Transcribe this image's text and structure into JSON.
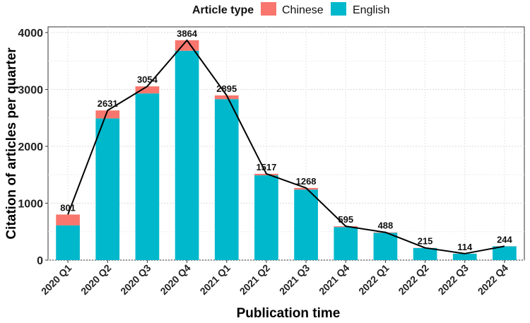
{
  "chart_data": {
    "type": "bar",
    "stacked": true,
    "categories": [
      "2020 Q1",
      "2020 Q2",
      "2020 Q3",
      "2020 Q4",
      "2021 Q1",
      "2021 Q2",
      "2021 Q3",
      "2021 Q4",
      "2022 Q1",
      "2022 Q2",
      "2022 Q3",
      "2022 Q4"
    ],
    "series": [
      {
        "name": "English",
        "color": "#00b8cc",
        "values": [
          610,
          2490,
          2930,
          3680,
          2830,
          1490,
          1240,
          580,
          480,
          212,
          112,
          242
        ]
      },
      {
        "name": "Chinese",
        "color": "#f8766d",
        "values": [
          191,
          141,
          124,
          184,
          65,
          27,
          28,
          15,
          8,
          3,
          2,
          2
        ]
      }
    ],
    "totals": [
      801,
      2631,
      3054,
      3864,
      2895,
      1517,
      1268,
      595,
      488,
      215,
      114,
      244
    ],
    "line": {
      "color": "#000000",
      "values": [
        801,
        2631,
        3054,
        3864,
        2895,
        1517,
        1268,
        595,
        488,
        215,
        114,
        244
      ]
    },
    "xlabel": "Publication time",
    "ylabel": "Citation of articles per quarter",
    "ylim": [
      0,
      4100
    ],
    "yticks": [
      0,
      1000,
      2000,
      3000,
      4000
    ],
    "grid": true,
    "legend": {
      "title": "Article type",
      "position": "top",
      "entries": [
        "Chinese",
        "English"
      ]
    }
  }
}
